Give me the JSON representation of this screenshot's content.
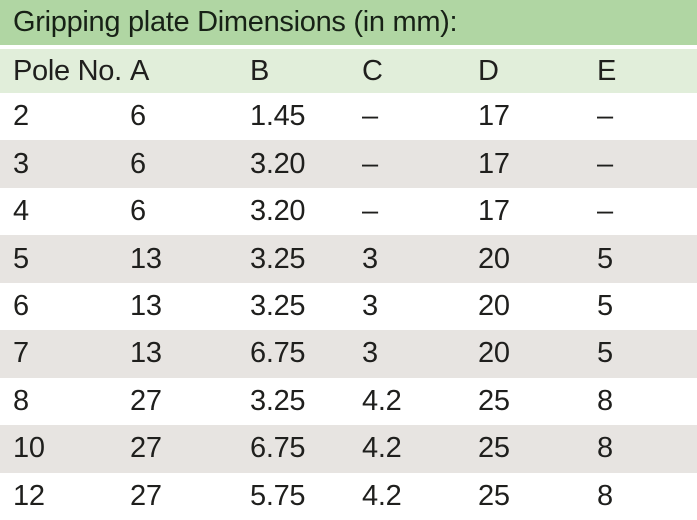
{
  "table": {
    "title": "Gripping plate Dimensions (in mm):",
    "columns": [
      "Pole No.",
      "A",
      "B",
      "C",
      "D",
      "E"
    ],
    "rows": [
      [
        "2",
        "6",
        "1.45",
        "–",
        "17",
        "–"
      ],
      [
        "3",
        "6",
        "3.20",
        "–",
        "17",
        "–"
      ],
      [
        "4",
        "6",
        "3.20",
        "–",
        "17",
        "–"
      ],
      [
        "5",
        "13",
        "3.25",
        "3",
        "20",
        "5"
      ],
      [
        "6",
        "13",
        "3.25",
        "3",
        "20",
        "5"
      ],
      [
        "7",
        "13",
        "6.75",
        "3",
        "20",
        "5"
      ],
      [
        "8",
        "27",
        "3.25",
        "4.2",
        "25",
        "8"
      ],
      [
        "10",
        "27",
        "6.75",
        "4.2",
        "25",
        "8"
      ],
      [
        "12",
        "27",
        "5.75",
        "4.2",
        "25",
        "8"
      ]
    ],
    "colors": {
      "title_bar_bg": "#b0d6a3",
      "header_row_bg": "#e1eeda",
      "stripe_row_bg": "#e7e4e1",
      "plain_row_bg": "#ffffff",
      "text": "#1f1f1d"
    }
  }
}
